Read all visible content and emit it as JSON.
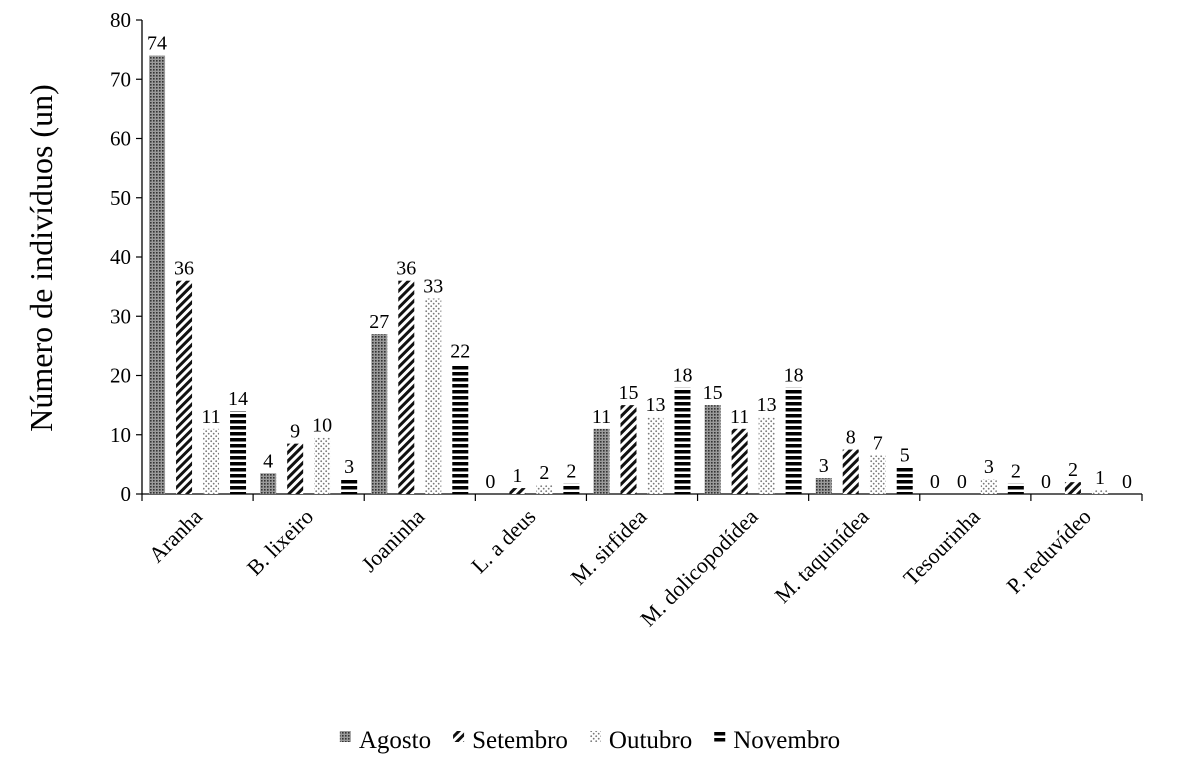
{
  "chart_data": {
    "type": "bar",
    "title": "",
    "xlabel": "",
    "ylabel": "Número de indivíduos (un)",
    "ylim": [
      0,
      80
    ],
    "yticks": [
      0,
      10,
      20,
      30,
      40,
      50,
      60,
      70,
      80
    ],
    "grid": false,
    "legend_position": "bottom",
    "categories": [
      "Aranha",
      "B. lixeiro",
      "Joaninha",
      "L. a deus",
      "M. sirfidea",
      "M. dolicopodídea",
      "M. taquinídea",
      "Tesourinha",
      "P. reduvídeo"
    ],
    "series": [
      {
        "name": "Agosto",
        "pattern": "dots",
        "color": "#555555",
        "values": [
          74,
          3.5,
          27,
          0,
          11,
          15,
          2.7,
          0,
          0
        ],
        "labels": [
          "74",
          "4",
          "27",
          "0",
          "11",
          "15",
          "3",
          "0",
          "0"
        ]
      },
      {
        "name": "Setembro",
        "pattern": "diagonal",
        "color": "#222222",
        "values": [
          36,
          8.5,
          36,
          1,
          15,
          11,
          7.5,
          0,
          2
        ],
        "labels": [
          "36",
          "9",
          "36",
          "1",
          "15",
          "11",
          "8",
          "0",
          "2"
        ]
      },
      {
        "name": "Outubro",
        "pattern": "sparse-dots",
        "color": "#777777",
        "values": [
          11,
          9.5,
          33,
          1.5,
          13,
          13,
          6.5,
          2.5,
          0.7
        ],
        "labels": [
          "11",
          "10",
          "33",
          "2",
          "13",
          "13",
          "7",
          "3",
          "1"
        ]
      },
      {
        "name": "Novembro",
        "pattern": "horizontal",
        "color": "#000000",
        "values": [
          14,
          2.5,
          22,
          1.8,
          18,
          18,
          4.5,
          1.8,
          0
        ],
        "labels": [
          "14",
          "3",
          "22",
          "2",
          "18",
          "18",
          "5",
          "2",
          "0"
        ]
      }
    ]
  }
}
